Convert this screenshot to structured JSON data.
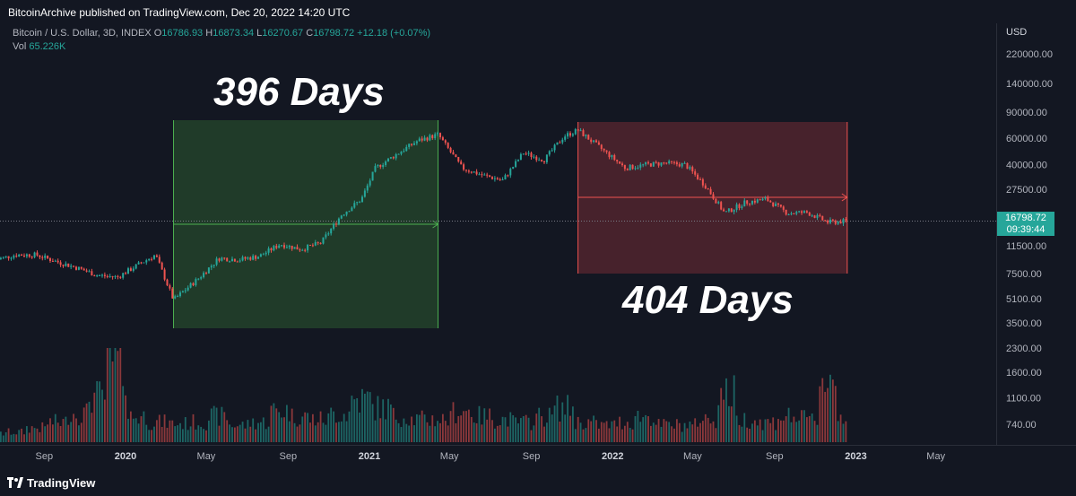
{
  "header": {
    "published": "BitcoinArchive published on TradingView.com, Dec 20, 2022 14:20 UTC"
  },
  "legend": {
    "symbol": "Bitcoin / U.S. Dollar, 3D, INDEX",
    "o_label": "O",
    "o_value": "16786.93",
    "h_label": "H",
    "h_value": "16873.34",
    "l_label": "L",
    "l_value": "16270.67",
    "c_label": "C",
    "c_value": "16798.72",
    "change": "+12.18 (+0.07%)",
    "vol_label": "Vol",
    "vol_value": "65.226K"
  },
  "price_axis": {
    "currency": "USD",
    "last_price": "16798.72",
    "countdown": "09:39:44"
  },
  "annotations": {
    "left_days": "396 Days",
    "right_days": "404 Days"
  },
  "colors": {
    "up": "#26a69a",
    "down": "#ef5350",
    "bull_zone": "#2b5a2f",
    "bear_zone": "#6b2a33",
    "background": "#131722"
  },
  "footer": {
    "brand": "TradingView"
  },
  "chart_data": {
    "type": "line",
    "scale": "log",
    "title": "",
    "xlabel": "",
    "ylabel": "",
    "x_ticks": [
      "Sep",
      "2020",
      "May",
      "Sep",
      "2021",
      "May",
      "Sep",
      "2022",
      "May",
      "Sep",
      "2023",
      "May"
    ],
    "x_tick_dates": [
      "2019-09-01",
      "2020-01-01",
      "2020-05-01",
      "2020-09-01",
      "2021-01-01",
      "2021-05-01",
      "2021-09-01",
      "2022-01-01",
      "2022-05-01",
      "2022-09-01",
      "2023-01-01",
      "2023-05-01"
    ],
    "price_ticks": [
      220000,
      140000,
      90000,
      60000,
      40000,
      27500,
      17500,
      11500,
      7500,
      5100,
      3500,
      2300,
      1600,
      1100,
      740
    ],
    "price_tick_labels": [
      "220000.00",
      "140000.00",
      "90000.00",
      "60000.00",
      "40000.00",
      "27500.00",
      "17500.00",
      "11500.00",
      "7500.00",
      "5100.00",
      "3500.00",
      "2300.00",
      "1600.00",
      "1100.00",
      "740.00"
    ],
    "series": [
      {
        "dates": [
          "2019-06-20",
          "2019-07-20",
          "2019-08-20",
          "2019-09-20",
          "2019-10-20",
          "2019-11-20",
          "2019-12-20",
          "2020-01-20",
          "2020-02-15",
          "2020-03-13",
          "2020-04-20",
          "2020-05-20",
          "2020-06-20",
          "2020-07-20",
          "2020-08-20",
          "2020-09-20",
          "2020-10-20",
          "2020-11-20",
          "2020-12-20",
          "2021-01-10",
          "2021-02-20",
          "2021-03-15",
          "2021-04-14",
          "2021-05-20",
          "2021-06-20",
          "2021-07-20",
          "2021-08-20",
          "2021-09-20",
          "2021-10-20",
          "2021-11-10",
          "2021-12-20",
          "2022-01-20",
          "2022-02-20",
          "2022-03-20",
          "2022-04-20",
          "2022-05-20",
          "2022-06-18",
          "2022-07-20",
          "2022-08-20",
          "2022-09-20",
          "2022-10-20",
          "2022-11-20",
          "2022-12-20"
        ],
        "values": [
          9300,
          10000,
          10000,
          9000,
          8200,
          7300,
          7100,
          8600,
          10000,
          5000,
          7000,
          9500,
          9300,
          9800,
          11800,
          10900,
          12000,
          18500,
          23500,
          38000,
          50000,
          58000,
          63500,
          38000,
          34000,
          31500,
          48000,
          43000,
          62000,
          68000,
          49000,
          38000,
          40000,
          41000,
          40000,
          29000,
          19000,
          22500,
          23500,
          19000,
          19200,
          16500,
          16800
        ]
      }
    ],
    "volume": [
      300,
      350,
      500,
      700,
      1000,
      1600,
      2700,
      900,
      700,
      650,
      700,
      900,
      600,
      700,
      1100,
      900,
      800,
      1000,
      1500,
      1200,
      900,
      800,
      800,
      1100,
      900,
      800,
      700,
      900,
      1200,
      700,
      600,
      700,
      900,
      600,
      600,
      800,
      1700,
      800,
      700,
      900,
      800,
      2200,
      900
    ]
  }
}
